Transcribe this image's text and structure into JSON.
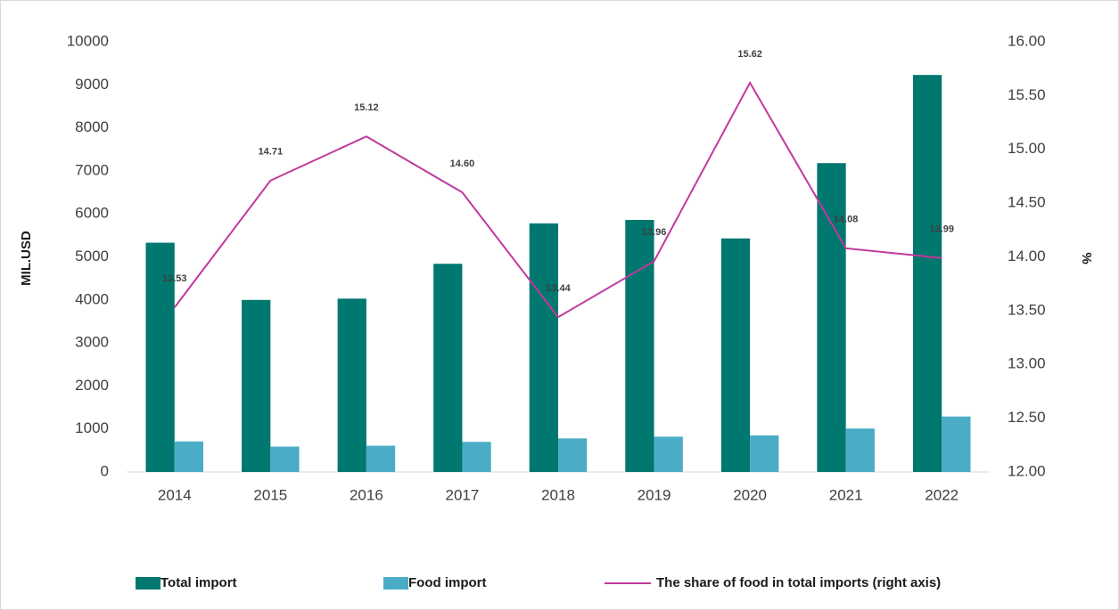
{
  "chart_data": {
    "type": "bar-line",
    "categories": [
      "2014",
      "2015",
      "2016",
      "2017",
      "2018",
      "2019",
      "2020",
      "2021",
      "2022"
    ],
    "series": [
      {
        "name": "Total import",
        "color": "#00776f",
        "type": "bar",
        "values": [
          5330,
          4000,
          4030,
          4840,
          5780,
          5860,
          5430,
          7180,
          9230
        ]
      },
      {
        "name": "Food import",
        "color": "#4bacc6",
        "type": "bar",
        "values": [
          710,
          590,
          610,
          700,
          780,
          820,
          850,
          1010,
          1290
        ]
      },
      {
        "name": "The share of food in total  imports (right axis)",
        "color": "#c2389b",
        "type": "line",
        "axis": "y2",
        "values": [
          13.53,
          14.71,
          15.12,
          14.6,
          13.44,
          13.96,
          15.62,
          14.08,
          13.99
        ],
        "value_labels": [
          "13.53",
          "14.71",
          "15.12",
          "14.60",
          "13.44",
          "13.96",
          "15.62",
          "14.08",
          "13.99"
        ]
      }
    ],
    "ylabel": "MIL.USD",
    "y2label": "%",
    "ylim": [
      0,
      10000
    ],
    "yticks": [
      0,
      1000,
      2000,
      3000,
      4000,
      5000,
      6000,
      7000,
      8000,
      9000,
      10000
    ],
    "y2lim": [
      12,
      16
    ],
    "y2ticks": [
      {
        "value": 12,
        "label": "12.00"
      },
      {
        "value": 12.5,
        "label": "12.50"
      },
      {
        "value": 13,
        "label": "13.00"
      },
      {
        "value": 13.5,
        "label": "13.50"
      },
      {
        "value": 14,
        "label": "14.00"
      },
      {
        "value": 14.5,
        "label": "14.50"
      },
      {
        "value": 15,
        "label": "15.00"
      },
      {
        "value": 15.5,
        "label": "15.50"
      },
      {
        "value": 16,
        "label": "16.00"
      }
    ],
    "legend": "bottom"
  }
}
